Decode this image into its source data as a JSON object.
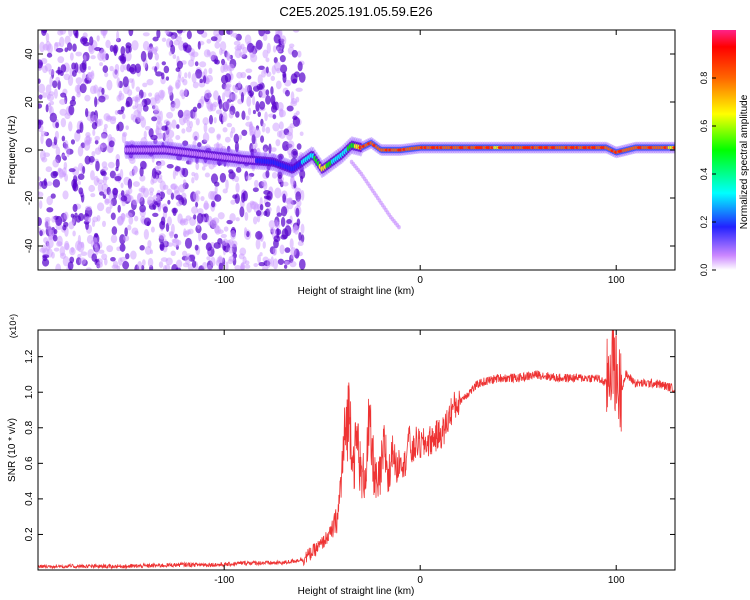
{
  "title": "C2E5.2025.191.05.59.E26",
  "colors": {
    "snr_line": "#ee3333",
    "spectrogram_low": "#cc99ff",
    "spectrogram_mid": "#5500cc",
    "spectrogram_core": "#00cc88",
    "spectrogram_peak": "#ff2200",
    "colorbar_stops": [
      "#ffffff",
      "#cc88ff",
      "#2222ff",
      "#00ffff",
      "#00ff00",
      "#ffff00",
      "#ff6600",
      "#ff0000",
      "#ff2288"
    ]
  },
  "chart_data": [
    {
      "type": "heatmap",
      "title": "C2E5.2025.191.05.59.E26",
      "xlabel": "Height of straight line (km)",
      "ylabel": "Frequency (Hz)",
      "xlim": [
        -195,
        130
      ],
      "ylim": [
        -50,
        50
      ],
      "xticks": [
        -100,
        0,
        100
      ],
      "yticks": [
        -40,
        -20,
        0,
        20,
        40
      ],
      "grid": false,
      "colorbar": {
        "label": "Normalized spectral amplitude",
        "range": [
          0,
          1
        ],
        "ticks": [
          0.0,
          0.2,
          0.4,
          0.6,
          0.8
        ]
      },
      "ridge": {
        "x": [
          -150,
          -130,
          -110,
          -90,
          -75,
          -65,
          -55,
          -50,
          -45,
          -40,
          -35,
          -30,
          -25,
          -20,
          -10,
          0,
          20,
          40,
          60,
          80,
          95,
          100,
          110,
          130
        ],
        "frequency": [
          0,
          0,
          -2,
          -4,
          -5,
          -8,
          -2,
          -8,
          -5,
          -2,
          2,
          1,
          3,
          0,
          0,
          1,
          1,
          1,
          1,
          1,
          1,
          -1,
          1,
          1
        ],
        "amplitude": [
          0.15,
          0.18,
          0.2,
          0.2,
          0.25,
          0.3,
          0.45,
          0.75,
          0.5,
          0.45,
          0.55,
          0.85,
          0.9,
          0.95,
          0.9,
          0.85,
          0.85,
          0.8,
          0.9,
          0.95,
          0.85,
          0.85,
          0.85,
          0.8
        ]
      },
      "noise_extent_x": [
        -195,
        -60
      ],
      "tail": {
        "x": [
          -35,
          -30,
          -25,
          -20,
          -15,
          -10
        ],
        "frequency": [
          -5,
          -10,
          -16,
          -22,
          -28,
          -33
        ]
      }
    },
    {
      "type": "line",
      "xlabel": "Height of straight line (km)",
      "ylabel": "SNR (10 * v/v)",
      "y_multiplier": "(x10⁴)",
      "xlim": [
        -195,
        130
      ],
      "ylim": [
        0,
        1.35
      ],
      "xticks": [
        -100,
        0,
        100
      ],
      "yticks": [
        0.2,
        0.4,
        0.6,
        0.8,
        1.0,
        1.2
      ],
      "grid": false,
      "series": [
        {
          "x": [
            -195,
            -150,
            -120,
            -100,
            -90,
            -80,
            -70,
            -65,
            -60,
            -55,
            -50,
            -45,
            -42,
            -40,
            -38,
            -36,
            -34,
            -32,
            -30,
            -28,
            -26,
            -24,
            -22,
            -20,
            -18,
            -16,
            -14,
            -12,
            -10,
            -8,
            -6,
            -4,
            -2,
            0,
            4,
            8,
            12,
            16,
            20,
            25,
            30,
            40,
            50,
            60,
            70,
            80,
            90,
            95,
            98,
            100,
            102,
            105,
            110,
            120,
            130
          ],
          "y": [
            0.02,
            0.02,
            0.03,
            0.03,
            0.04,
            0.04,
            0.04,
            0.05,
            0.06,
            0.1,
            0.15,
            0.22,
            0.3,
            0.55,
            0.8,
            0.9,
            0.6,
            0.75,
            0.5,
            0.55,
            0.8,
            0.6,
            0.45,
            0.55,
            0.7,
            0.5,
            0.7,
            0.55,
            0.65,
            0.58,
            0.75,
            0.65,
            0.72,
            0.7,
            0.72,
            0.75,
            0.78,
            0.9,
            0.95,
            1.0,
            1.05,
            1.08,
            1.08,
            1.1,
            1.08,
            1.08,
            1.08,
            1.05,
            1.2,
            1.1,
            1.0,
            1.1,
            1.05,
            1.05,
            1.02
          ]
        }
      ]
    }
  ]
}
